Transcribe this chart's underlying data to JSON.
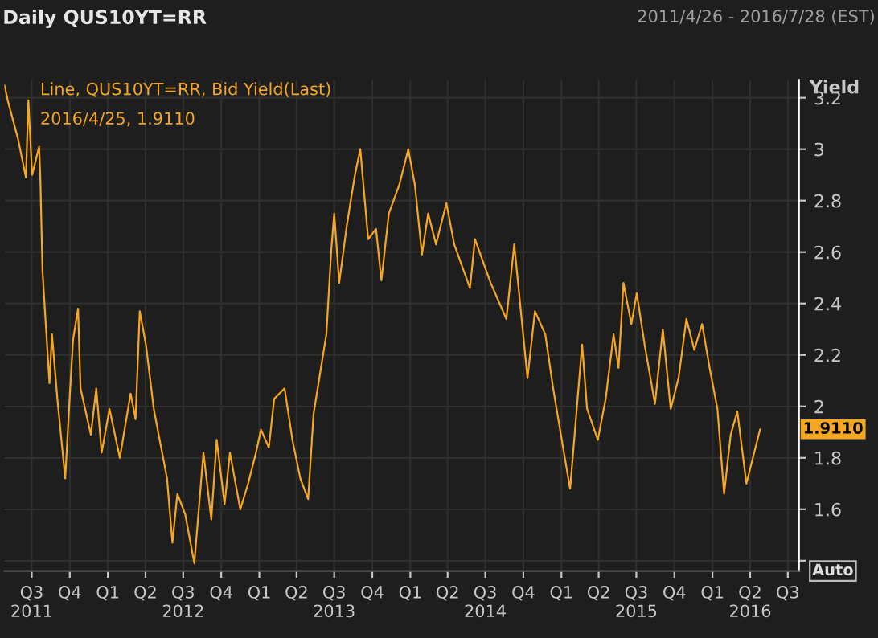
{
  "chart_data": {
    "type": "line",
    "title": "Daily QUS10YT=RR",
    "subtitle": "2011/4/26 - 2016/7/28 (EST)",
    "ylabel": "Yield",
    "annotations": [
      "2016/4/25, 1.9110",
      {
        "text": "1.9110",
        "x": "2016-04-25",
        "y": 1.911
      },
      "Auto"
    ],
    "x": [
      "2011-04-26",
      "2011-05-04",
      "2011-05-29",
      "2011-06-17",
      "2011-06-23",
      "2011-07-02",
      "2011-07-19",
      "2011-07-22",
      "2011-07-27",
      "2011-08-04",
      "2011-08-13",
      "2011-08-19",
      "2011-09-01",
      "2011-09-20",
      "2011-10-02",
      "2011-10-09",
      "2011-10-21",
      "2011-10-27",
      "2011-11-21",
      "2011-12-04",
      "2011-12-17",
      "2012-01-05",
      "2012-01-30",
      "2012-02-25",
      "2012-03-08",
      "2012-03-18",
      "2012-04-02",
      "2012-04-21",
      "2012-05-23",
      "2012-06-05",
      "2012-06-17",
      "2012-07-06",
      "2012-07-28",
      "2012-08-19",
      "2012-09-07",
      "2012-09-20",
      "2012-10-09",
      "2012-10-22",
      "2012-11-16",
      "2012-12-05",
      "2012-12-24",
      "2013-01-05",
      "2013-01-24",
      "2013-02-06",
      "2013-03-03",
      "2013-03-22",
      "2013-04-10",
      "2013-04-29",
      "2013-05-12",
      "2013-05-30",
      "2013-06-12",
      "2013-06-24",
      "2013-07-01",
      "2013-07-13",
      "2013-08-01",
      "2013-08-20",
      "2013-09-02",
      "2013-09-21",
      "2013-10-10",
      "2013-10-23",
      "2013-11-10",
      "2013-12-05",
      "2013-12-27",
      "2014-01-12",
      "2014-01-29",
      "2014-02-13",
      "2014-03-04",
      "2014-03-29",
      "2014-04-17",
      "2014-05-25",
      "2014-06-06",
      "2014-07-14",
      "2014-08-21",
      "2014-09-09",
      "2014-10-11",
      "2014-10-29",
      "2014-11-23",
      "2014-12-12",
      "2015-01-07",
      "2015-01-22",
      "2015-02-07",
      "2015-02-20",
      "2015-03-04",
      "2015-03-30",
      "2015-04-18",
      "2015-05-07",
      "2015-05-19",
      "2015-05-31",
      "2015-06-19",
      "2015-07-02",
      "2015-07-21",
      "2015-08-15",
      "2015-09-03",
      "2015-09-22",
      "2015-10-11",
      "2015-10-30",
      "2015-11-18",
      "2015-12-07",
      "2015-12-25",
      "2016-01-13",
      "2016-01-29",
      "2016-02-14",
      "2016-03-01",
      "2016-03-23",
      "2016-04-25"
    ],
    "series": [
      {
        "name": "Line, QUS10YT=RR, Bid Yield(Last)",
        "color": "#f5a623",
        "values": [
          3.25,
          3.19,
          3.04,
          2.89,
          3.19,
          2.9,
          3.01,
          2.88,
          2.53,
          2.32,
          2.09,
          2.28,
          2.03,
          1.72,
          2.07,
          2.26,
          2.38,
          2.07,
          1.89,
          2.07,
          1.82,
          1.99,
          1.8,
          2.05,
          1.95,
          2.37,
          2.24,
          1.99,
          1.72,
          1.47,
          1.66,
          1.58,
          1.39,
          1.82,
          1.56,
          1.87,
          1.62,
          1.82,
          1.6,
          1.7,
          1.82,
          1.91,
          1.84,
          2.03,
          2.07,
          1.87,
          1.72,
          1.64,
          1.97,
          2.15,
          2.28,
          2.61,
          2.75,
          2.48,
          2.71,
          2.9,
          3.0,
          2.65,
          2.69,
          2.49,
          2.75,
          2.86,
          3.0,
          2.86,
          2.59,
          2.75,
          2.63,
          2.79,
          2.63,
          2.46,
          2.65,
          2.48,
          2.34,
          2.63,
          2.11,
          2.37,
          2.28,
          2.07,
          1.82,
          1.68,
          1.99,
          2.24,
          1.99,
          1.87,
          2.03,
          2.28,
          2.15,
          2.48,
          2.32,
          2.44,
          2.24,
          2.01,
          2.3,
          1.99,
          2.11,
          2.34,
          2.22,
          2.32,
          2.15,
          1.99,
          1.66,
          1.89,
          1.98,
          1.7,
          1.911
        ]
      }
    ],
    "xlim": [
      "2011-04-26",
      "2016-07-28"
    ],
    "xticks": [
      {
        "value": "2011-07-01",
        "label": "Q3\n2011"
      },
      {
        "value": "2011-10-01",
        "label": "Q4"
      },
      {
        "value": "2012-01-01",
        "label": "Q1"
      },
      {
        "value": "2012-04-01",
        "label": "Q2"
      },
      {
        "value": "2012-07-01",
        "label": "Q3\n2012"
      },
      {
        "value": "2012-10-01",
        "label": "Q4"
      },
      {
        "value": "2013-01-01",
        "label": "Q1"
      },
      {
        "value": "2013-04-01",
        "label": "Q2"
      },
      {
        "value": "2013-07-01",
        "label": "Q3\n2013"
      },
      {
        "value": "2013-10-01",
        "label": "Q4"
      },
      {
        "value": "2014-01-01",
        "label": "Q1"
      },
      {
        "value": "2014-04-01",
        "label": "Q2"
      },
      {
        "value": "2014-07-01",
        "label": "Q3\n2014"
      },
      {
        "value": "2014-10-01",
        "label": "Q4"
      },
      {
        "value": "2015-01-01",
        "label": "Q1"
      },
      {
        "value": "2015-04-01",
        "label": "Q2"
      },
      {
        "value": "2015-07-01",
        "label": "Q3\n2015"
      },
      {
        "value": "2015-10-01",
        "label": "Q4"
      },
      {
        "value": "2016-01-01",
        "label": "Q1"
      },
      {
        "value": "2016-04-01",
        "label": "Q2\n2016"
      },
      {
        "value": "2016-07-01",
        "label": "Q3"
      }
    ],
    "ylim": [
      1.36,
      3.27
    ],
    "yticks": [
      {
        "value": 1.4,
        "label": null
      },
      1.6,
      1.8,
      2,
      2.2,
      2.4,
      2.6,
      2.8,
      3,
      3.2
    ],
    "grid": true,
    "legend": "top left",
    "marker": "none",
    "line_style": "solid"
  }
}
